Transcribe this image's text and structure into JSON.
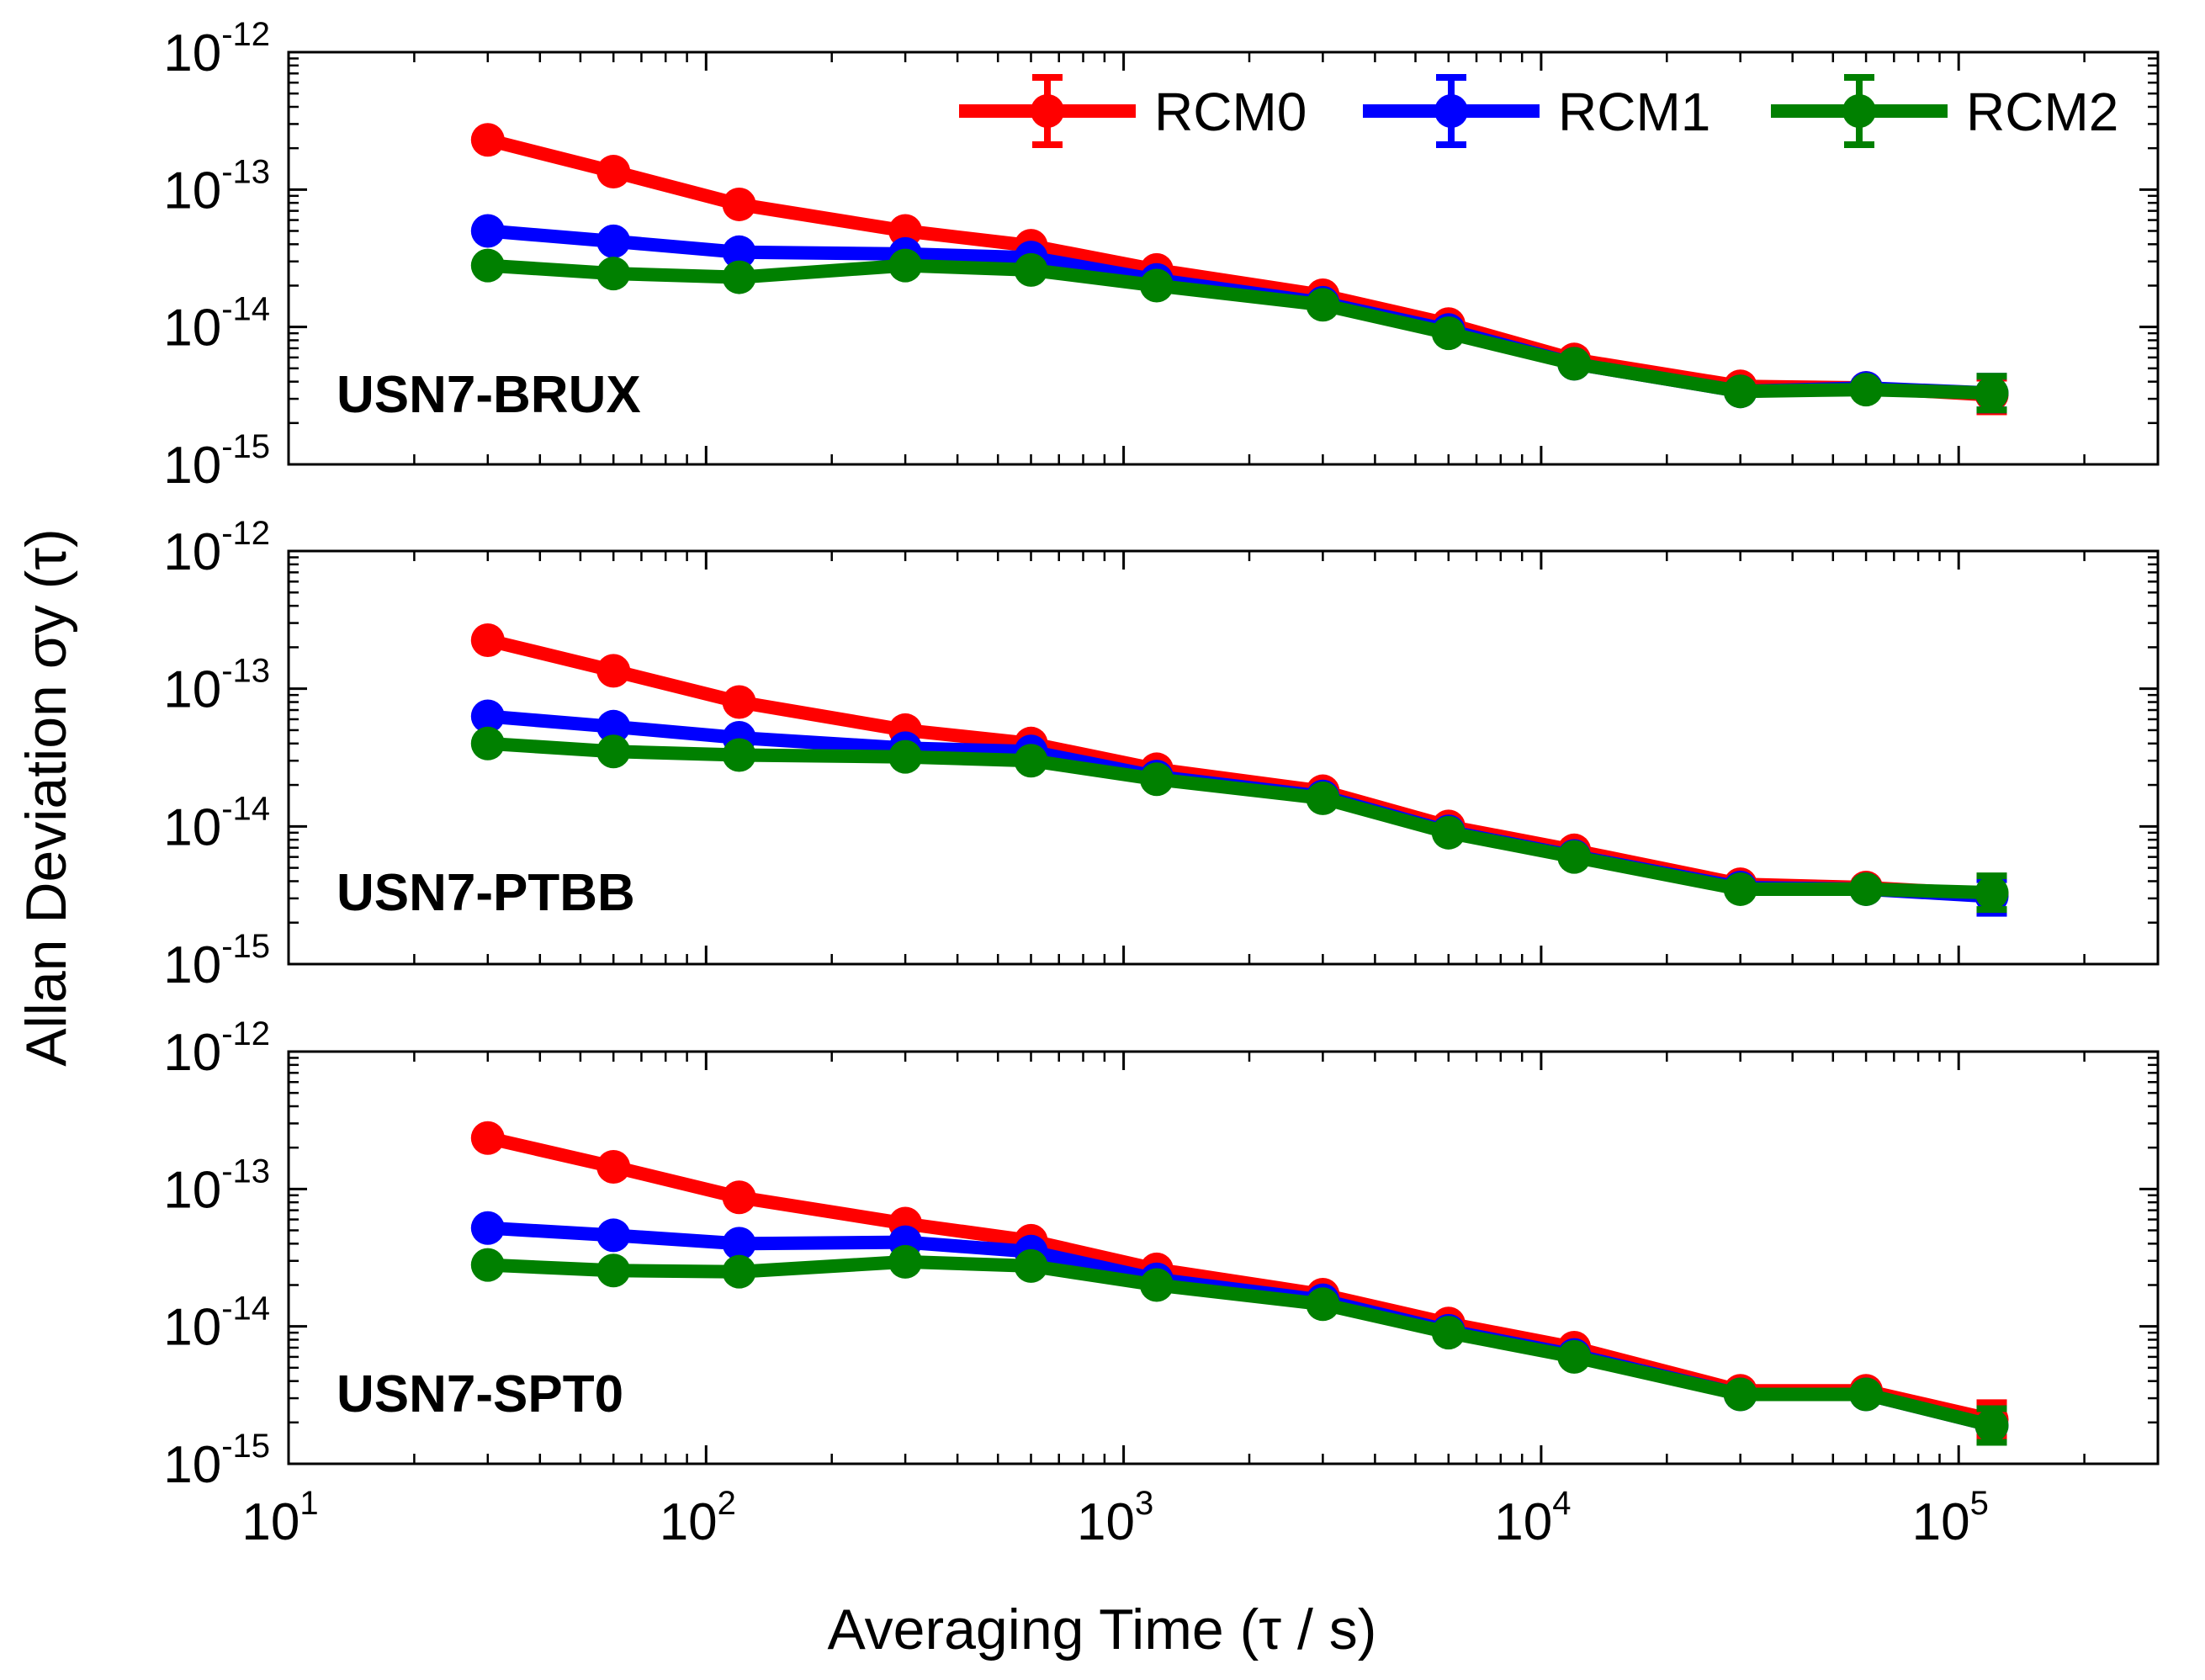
{
  "chart_data": {
    "type": "line",
    "xscale": "log",
    "yscale": "log",
    "xlabel": "Averaging Time (τ / s)",
    "ylabel": "Allan Deviation σy (τ)",
    "xlim": [
      10,
      300000
    ],
    "ylim": [
      1e-15,
      1e-12
    ],
    "x_ticks": [
      {
        "base": "10",
        "exp": "1"
      },
      {
        "base": "10",
        "exp": "2"
      },
      {
        "base": "10",
        "exp": "3"
      },
      {
        "base": "10",
        "exp": "4"
      },
      {
        "base": "10",
        "exp": "5"
      }
    ],
    "y_ticks": [
      {
        "base": "10",
        "exp": "-12"
      },
      {
        "base": "10",
        "exp": "-13"
      },
      {
        "base": "10",
        "exp": "-14"
      },
      {
        "base": "10",
        "exp": "-15"
      }
    ],
    "legend": [
      {
        "name": "RCM0",
        "color": "#ff0000"
      },
      {
        "name": "RCM1",
        "color": "#0000ff"
      },
      {
        "name": "RCM2",
        "color": "#008000"
      }
    ],
    "x": [
      30,
      60,
      120,
      300,
      600,
      1200,
      3000,
      6000,
      12000,
      30000,
      60000,
      120000
    ],
    "panels": [
      {
        "label": "USN7-BRUX",
        "series": [
          {
            "name": "RCM0",
            "color": "#ff0000",
            "values": [
              2.3e-13,
              1.35e-13,
              7.8e-14,
              5e-14,
              3.9e-14,
              2.6e-14,
              1.7e-14,
              1.05e-14,
              5.8e-15,
              3.7e-15,
              3.6e-15,
              3.2e-15
            ]
          },
          {
            "name": "RCM1",
            "color": "#0000ff",
            "values": [
              5e-14,
              4.2e-14,
              3.5e-14,
              3.4e-14,
              3.2e-14,
              2.2e-14,
              1.5e-14,
              9.5e-15,
              5.4e-15,
              3.4e-15,
              3.6e-15,
              3.3e-15
            ]
          },
          {
            "name": "RCM2",
            "color": "#008000",
            "values": [
              2.8e-14,
              2.45e-14,
              2.3e-14,
              2.8e-14,
              2.6e-14,
              2e-14,
              1.45e-14,
              9e-15,
              5.4e-15,
              3.4e-15,
              3.5e-15,
              3.3e-15
            ]
          }
        ]
      },
      {
        "label": "USN7-PTBB",
        "series": [
          {
            "name": "RCM0",
            "color": "#ff0000",
            "values": [
              2.25e-13,
              1.35e-13,
              8e-14,
              5e-14,
              4e-14,
              2.6e-14,
              1.8e-14,
              1e-14,
              6.7e-15,
              3.8e-15,
              3.6e-15,
              3.2e-15
            ]
          },
          {
            "name": "RCM1",
            "color": "#0000ff",
            "values": [
              6.3e-14,
              5.3e-14,
              4.4e-14,
              3.7e-14,
              3.5e-14,
              2.3e-14,
              1.65e-14,
              9.2e-15,
              6.1e-15,
              3.6e-15,
              3.5e-15,
              3.1e-15
            ]
          },
          {
            "name": "RCM2",
            "color": "#008000",
            "values": [
              4e-14,
              3.5e-14,
              3.3e-14,
              3.2e-14,
              3e-14,
              2.2e-14,
              1.6e-14,
              9e-15,
              6e-15,
              3.5e-15,
              3.5e-15,
              3.3e-15
            ]
          }
        ]
      },
      {
        "label": "USN7-SPT0",
        "series": [
          {
            "name": "RCM0",
            "color": "#ff0000",
            "values": [
              2.35e-13,
              1.45e-13,
              8.7e-14,
              5.6e-14,
              4.2e-14,
              2.6e-14,
              1.7e-14,
              1.05e-14,
              7e-15,
              3.4e-15,
              3.4e-15,
              2.1e-15
            ]
          },
          {
            "name": "RCM1",
            "color": "#0000ff",
            "values": [
              5.2e-14,
              4.6e-14,
              4e-14,
              4.1e-14,
              3.5e-14,
              2.2e-14,
              1.55e-14,
              9.3e-15,
              6.2e-15,
              3.2e-15,
              3.2e-15,
              1.9e-15
            ]
          },
          {
            "name": "RCM2",
            "color": "#008000",
            "values": [
              2.8e-14,
              2.55e-14,
              2.5e-14,
              2.95e-14,
              2.75e-14,
              2e-14,
              1.45e-14,
              9e-15,
              6e-15,
              3.2e-15,
              3.2e-15,
              1.9e-15
            ]
          }
        ]
      }
    ]
  }
}
